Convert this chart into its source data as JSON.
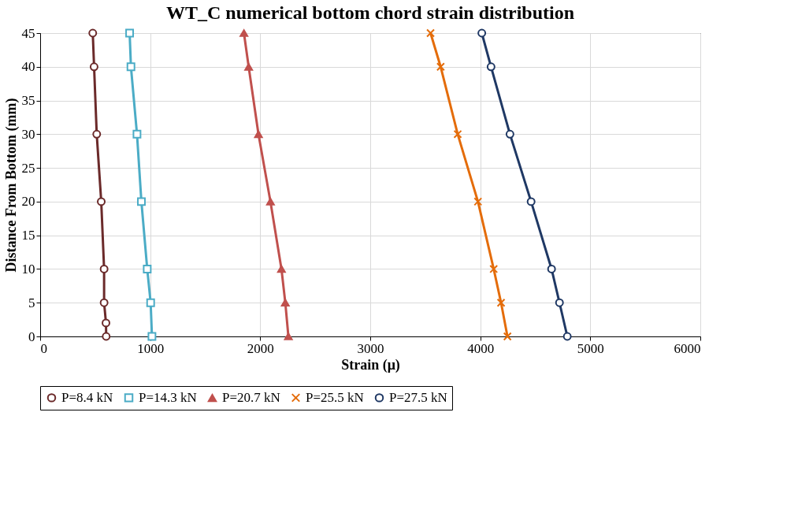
{
  "chart_data": {
    "type": "line",
    "title": "WT_C numerical bottom chord strain distribution",
    "xlabel": "Strain (μ)",
    "ylabel": "Distance From Bottom (mm)",
    "xlim": [
      0,
      6000
    ],
    "xticks": [
      0,
      1000,
      2000,
      3000,
      4000,
      5000,
      6000
    ],
    "ylim": [
      0,
      45
    ],
    "yticks": [
      0,
      5,
      10,
      15,
      20,
      25,
      30,
      35,
      40,
      45
    ],
    "grid": true,
    "legend": "bottom",
    "series": [
      {
        "name": "P=8.4 kN",
        "color": "#6b2a2a",
        "marker": "circle",
        "x": [
          478,
          490,
          514,
          555,
          581,
          581,
          598,
          600
        ],
        "values": [
          45,
          40,
          30,
          20,
          10,
          5,
          2,
          0
        ]
      },
      {
        "name": "P=14.3 kN",
        "color": "#4bacc6",
        "marker": "square",
        "x": [
          813,
          825,
          880,
          920,
          973,
          1004,
          1016
        ],
        "values": [
          45,
          40,
          30,
          20,
          10,
          5,
          0
        ]
      },
      {
        "name": "P=20.7 kN",
        "color": "#c0504d",
        "marker": "triangle",
        "x": [
          1852,
          1895,
          1984,
          2093,
          2193,
          2228,
          2256
        ],
        "values": [
          45,
          40,
          30,
          20,
          10,
          5,
          0
        ]
      },
      {
        "name": "P=25.5 kN",
        "color": "#e46c0a",
        "marker": "cross",
        "x": [
          3548,
          3640,
          3795,
          3979,
          4122,
          4189,
          4247
        ],
        "values": [
          45,
          40,
          30,
          20,
          10,
          5,
          0
        ]
      },
      {
        "name": "P=27.5 kN",
        "color": "#1f3864",
        "marker": "circle",
        "x": [
          4014,
          4098,
          4270,
          4462,
          4648,
          4720,
          4791
        ],
        "values": [
          45,
          40,
          30,
          20,
          10,
          5,
          0
        ]
      }
    ]
  }
}
